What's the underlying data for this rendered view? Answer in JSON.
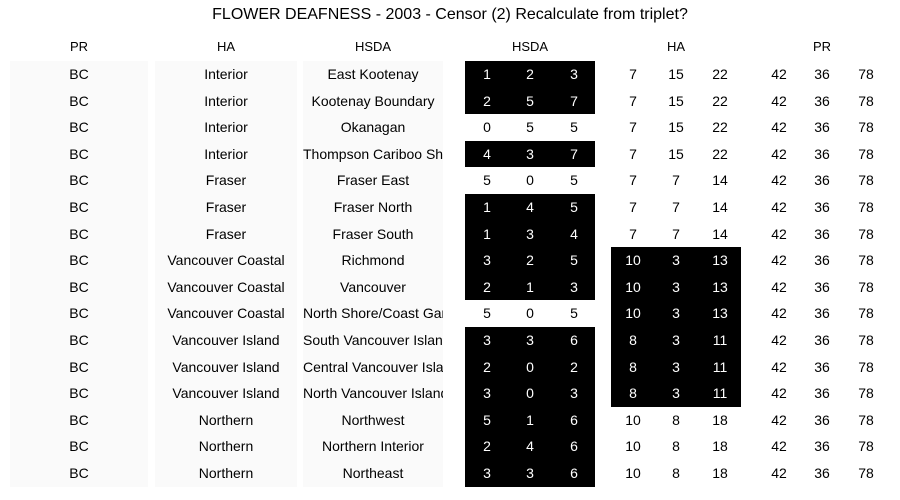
{
  "title": "FLOWER DEAFNESS - 2003 - Censor (2) Recalculate from triplet?",
  "headers": {
    "pr": "PR",
    "ha": "HA",
    "hsda": "HSDA",
    "hsda_group": "HSDA",
    "ha_group": "HA",
    "pr_group": "PR"
  },
  "rows": [
    {
      "pr": "BC",
      "ha": "Interior",
      "hsda": "East Kootenay",
      "hsda_vals": [
        "1",
        "2",
        "3"
      ],
      "hsda_black": true,
      "ha_vals": [
        "7",
        "15",
        "22"
      ],
      "ha_black": false,
      "pr_vals": [
        "42",
        "36",
        "78"
      ]
    },
    {
      "pr": "BC",
      "ha": "Interior",
      "hsda": "Kootenay Boundary",
      "hsda_vals": [
        "2",
        "5",
        "7"
      ],
      "hsda_black": true,
      "ha_vals": [
        "7",
        "15",
        "22"
      ],
      "ha_black": false,
      "pr_vals": [
        "42",
        "36",
        "78"
      ]
    },
    {
      "pr": "BC",
      "ha": "Interior",
      "hsda": "Okanagan",
      "hsda_vals": [
        "0",
        "5",
        "5"
      ],
      "hsda_black": false,
      "ha_vals": [
        "7",
        "15",
        "22"
      ],
      "ha_black": false,
      "pr_vals": [
        "42",
        "36",
        "78"
      ]
    },
    {
      "pr": "BC",
      "ha": "Interior",
      "hsda": "Thompson Cariboo Shuswap",
      "hsda_vals": [
        "4",
        "3",
        "7"
      ],
      "hsda_black": true,
      "ha_vals": [
        "7",
        "15",
        "22"
      ],
      "ha_black": false,
      "pr_vals": [
        "42",
        "36",
        "78"
      ]
    },
    {
      "pr": "BC",
      "ha": "Fraser",
      "hsda": "Fraser East",
      "hsda_vals": [
        "5",
        "0",
        "5"
      ],
      "hsda_black": false,
      "ha_vals": [
        "7",
        "7",
        "14"
      ],
      "ha_black": false,
      "pr_vals": [
        "42",
        "36",
        "78"
      ]
    },
    {
      "pr": "BC",
      "ha": "Fraser",
      "hsda": "Fraser North",
      "hsda_vals": [
        "1",
        "4",
        "5"
      ],
      "hsda_black": true,
      "ha_vals": [
        "7",
        "7",
        "14"
      ],
      "ha_black": false,
      "pr_vals": [
        "42",
        "36",
        "78"
      ]
    },
    {
      "pr": "BC",
      "ha": "Fraser",
      "hsda": "Fraser South",
      "hsda_vals": [
        "1",
        "3",
        "4"
      ],
      "hsda_black": true,
      "ha_vals": [
        "7",
        "7",
        "14"
      ],
      "ha_black": false,
      "pr_vals": [
        "42",
        "36",
        "78"
      ]
    },
    {
      "pr": "BC",
      "ha": "Vancouver Coastal",
      "hsda": "Richmond",
      "hsda_vals": [
        "3",
        "2",
        "5"
      ],
      "hsda_black": true,
      "ha_vals": [
        "10",
        "3",
        "13"
      ],
      "ha_black": true,
      "pr_vals": [
        "42",
        "36",
        "78"
      ]
    },
    {
      "pr": "BC",
      "ha": "Vancouver Coastal",
      "hsda": "Vancouver",
      "hsda_vals": [
        "2",
        "1",
        "3"
      ],
      "hsda_black": true,
      "ha_vals": [
        "10",
        "3",
        "13"
      ],
      "ha_black": true,
      "pr_vals": [
        "42",
        "36",
        "78"
      ]
    },
    {
      "pr": "BC",
      "ha": "Vancouver Coastal",
      "hsda": "North Shore/Coast Garibaldi",
      "hsda_vals": [
        "5",
        "0",
        "5"
      ],
      "hsda_black": false,
      "ha_vals": [
        "10",
        "3",
        "13"
      ],
      "ha_black": true,
      "pr_vals": [
        "42",
        "36",
        "78"
      ]
    },
    {
      "pr": "BC",
      "ha": "Vancouver Island",
      "hsda": "South Vancouver Island",
      "hsda_vals": [
        "3",
        "3",
        "6"
      ],
      "hsda_black": true,
      "ha_vals": [
        "8",
        "3",
        "11"
      ],
      "ha_black": true,
      "pr_vals": [
        "42",
        "36",
        "78"
      ]
    },
    {
      "pr": "BC",
      "ha": "Vancouver Island",
      "hsda": "Central Vancouver Island",
      "hsda_vals": [
        "2",
        "0",
        "2"
      ],
      "hsda_black": true,
      "ha_vals": [
        "8",
        "3",
        "11"
      ],
      "ha_black": true,
      "pr_vals": [
        "42",
        "36",
        "78"
      ]
    },
    {
      "pr": "BC",
      "ha": "Vancouver Island",
      "hsda": "North Vancouver Island",
      "hsda_vals": [
        "3",
        "0",
        "3"
      ],
      "hsda_black": true,
      "ha_vals": [
        "8",
        "3",
        "11"
      ],
      "ha_black": true,
      "pr_vals": [
        "42",
        "36",
        "78"
      ]
    },
    {
      "pr": "BC",
      "ha": "Northern",
      "hsda": "Northwest",
      "hsda_vals": [
        "5",
        "1",
        "6"
      ],
      "hsda_black": true,
      "ha_vals": [
        "10",
        "8",
        "18"
      ],
      "ha_black": false,
      "pr_vals": [
        "42",
        "36",
        "78"
      ]
    },
    {
      "pr": "BC",
      "ha": "Northern",
      "hsda": "Northern Interior",
      "hsda_vals": [
        "2",
        "4",
        "6"
      ],
      "hsda_black": true,
      "ha_vals": [
        "10",
        "8",
        "18"
      ],
      "ha_black": false,
      "pr_vals": [
        "42",
        "36",
        "78"
      ]
    },
    {
      "pr": "BC",
      "ha": "Northern",
      "hsda": "Northeast",
      "hsda_vals": [
        "3",
        "3",
        "6"
      ],
      "hsda_black": true,
      "ha_vals": [
        "10",
        "8",
        "18"
      ],
      "ha_black": false,
      "pr_vals": [
        "42",
        "36",
        "78"
      ]
    }
  ]
}
